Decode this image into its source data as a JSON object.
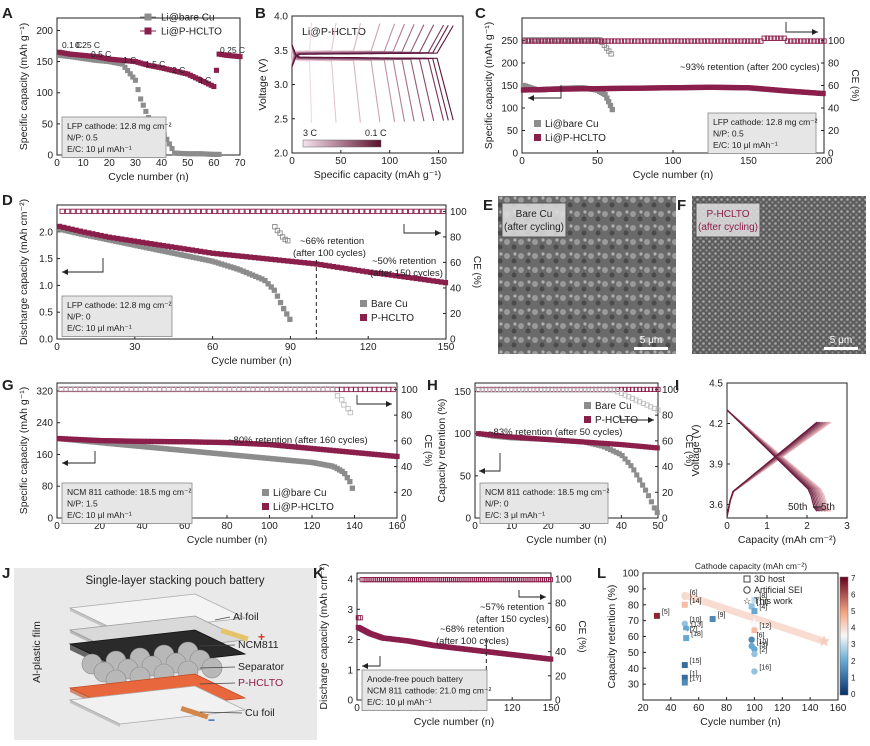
{
  "colors": {
    "bare": "#8c8c8c",
    "hcl": "#8b1f4b",
    "hcl_light": "#c9a0b3",
    "gray_light": "#bdbdbd"
  },
  "chart_data": [
    {
      "panel": "A",
      "type": "scatter",
      "xlabel": "Cycle number (n)",
      "ylabel": "Specific capacity (mAh g⁻¹)",
      "xlim": [
        0,
        70
      ],
      "ylim": [
        0,
        220
      ],
      "xticks": [
        0,
        10,
        20,
        30,
        40,
        50,
        60,
        70
      ],
      "yticks": [
        0,
        50,
        100,
        150,
        200
      ],
      "legend": [
        "Li@bare Cu",
        "Li@P-HCLTO"
      ],
      "rate_labels": [
        "0.1 C",
        "0.25 C",
        "0.5 C",
        "1 C",
        "1.5 C",
        "2 C",
        "3 C",
        "0.25 C"
      ],
      "info": [
        "LFP cathode: 12.8 mg cm⁻²",
        "N/P: 0.5",
        "E/C: 10 μl mAh⁻¹"
      ],
      "series": [
        {
          "name": "Li@bare Cu",
          "x": [
            1,
            5,
            10,
            15,
            20,
            25,
            30,
            32,
            35,
            40,
            45,
            50,
            55,
            60,
            62
          ],
          "y": [
            160,
            158,
            155,
            152,
            150,
            146,
            120,
            90,
            60,
            40,
            3,
            2,
            2,
            1,
            1
          ]
        },
        {
          "name": "Li@P-HCLTO",
          "x": [
            1,
            5,
            10,
            15,
            20,
            25,
            30,
            35,
            40,
            45,
            50,
            55,
            60,
            62,
            65,
            70
          ],
          "y": [
            165,
            162,
            160,
            158,
            154,
            152,
            150,
            144,
            140,
            135,
            130,
            120,
            110,
            162,
            160,
            158
          ]
        }
      ]
    },
    {
      "panel": "B",
      "type": "line",
      "title": "Li@P-HCLTO",
      "xlabel": "Specific capacity (mAh g⁻¹)",
      "ylabel": "Voltage (V)",
      "xlim": [
        0,
        175
      ],
      "ylim": [
        2.0,
        4.0
      ],
      "xticks": [
        0,
        50,
        100,
        150
      ],
      "yticks": [
        2.0,
        2.5,
        3.0,
        3.5,
        4.0
      ],
      "colorbar_labels": [
        "3 C",
        "0.1 C"
      ],
      "colorbar_ticks": [
        0,
        25,
        50,
        75,
        100
      ],
      "capacities": [
        20,
        45,
        70,
        90,
        105,
        115,
        125,
        135,
        145,
        155,
        160,
        165
      ]
    },
    {
      "panel": "C",
      "type": "scatter",
      "xlabel": "Cycle number (n)",
      "ylabel": "Specific capacity (mAh g⁻¹)",
      "y2label": "CE (%)",
      "xlim": [
        0,
        200
      ],
      "ylim": [
        0,
        300
      ],
      "y2lim": [
        0,
        120
      ],
      "xticks": [
        0,
        50,
        100,
        150,
        200
      ],
      "yticks": [
        0,
        50,
        100,
        150,
        200,
        250
      ],
      "y2ticks": [
        0,
        20,
        40,
        60,
        80,
        100
      ],
      "annotation": "~93% retention (after 200 cycles)",
      "legend": [
        "Li@bare Cu",
        "Li@P-HCLTO"
      ],
      "info": [
        "LFP cathode: 12.8 mg cm⁻²",
        "N/P: 0.5",
        "E/C: 10 μl mAh⁻¹"
      ],
      "series": [
        {
          "name": "Li@bare Cu",
          "x": [
            1,
            10,
            20,
            30,
            40,
            50,
            55,
            58,
            60
          ],
          "y": [
            150,
            140,
            142,
            144,
            145,
            140,
            130,
            110,
            95
          ]
        },
        {
          "name": "Li@P-HCLTO",
          "x": [
            1,
            25,
            50,
            75,
            100,
            125,
            150,
            175,
            200
          ],
          "y": [
            140,
            142,
            143,
            144,
            145,
            146,
            145,
            138,
            132
          ]
        }
      ]
    },
    {
      "panel": "D",
      "type": "scatter",
      "xlabel": "Cycle number (n)",
      "ylabel": "Discharge capacity (mAh cm⁻²)",
      "y2label": "CE (%)",
      "xlim": [
        0,
        150
      ],
      "ylim": [
        0.0,
        2.5
      ],
      "y2lim": [
        0,
        105
      ],
      "xticks": [
        0,
        30,
        60,
        90,
        120,
        150
      ],
      "yticks": [
        0.0,
        0.5,
        1.0,
        1.5,
        2.0
      ],
      "y2ticks": [
        0,
        20,
        40,
        60,
        80,
        100
      ],
      "annotations": [
        "~66% retention (after 100 cycles)",
        "~50% retention (after 150 cycles)"
      ],
      "legend": [
        "Bare Cu",
        "P-HCLTO"
      ],
      "info": [
        "LFP cathode: 12.8 mg cm⁻²",
        "N/P: 0",
        "E/C: 10 μl mAh⁻¹"
      ],
      "series": [
        {
          "name": "Bare Cu",
          "x": [
            1,
            10,
            20,
            30,
            40,
            50,
            60,
            70,
            80,
            84,
            87,
            90
          ],
          "y": [
            2.05,
            1.95,
            1.85,
            1.75,
            1.65,
            1.55,
            1.45,
            1.3,
            1.1,
            0.9,
            0.6,
            0.35
          ]
        },
        {
          "name": "P-HCLTO",
          "x": [
            1,
            10,
            20,
            40,
            60,
            80,
            100,
            120,
            140,
            150
          ],
          "y": [
            2.1,
            2.0,
            1.9,
            1.75,
            1.6,
            1.5,
            1.4,
            1.25,
            1.12,
            1.05
          ]
        }
      ]
    },
    {
      "panel": "E",
      "type": "image",
      "caption": [
        "Bare Cu",
        "(after cycling)"
      ],
      "scale": "5 μm"
    },
    {
      "panel": "F",
      "type": "image",
      "caption": [
        "P-HCLTO",
        "(after cycling)"
      ],
      "scale": "5 μm"
    },
    {
      "panel": "G",
      "type": "scatter",
      "xlabel": "Cycle number (n)",
      "ylabel": "Specific capacity (mAh g⁻¹)",
      "y2label": "CE (%)",
      "xlim": [
        0,
        160
      ],
      "ylim": [
        0,
        340
      ],
      "y2lim": [
        0,
        105
      ],
      "xticks": [
        0,
        20,
        40,
        60,
        80,
        100,
        120,
        140,
        160
      ],
      "yticks": [
        0,
        80,
        160,
        240,
        320
      ],
      "y2ticks": [
        0,
        20,
        40,
        60,
        80,
        100
      ],
      "annotation": "~80% retention (after 160 cycles)",
      "legend": [
        "Li@bare Cu",
        "Li@P-HCLTO"
      ],
      "info": [
        "NCM 811 cathode: 18.5 mg cm⁻²",
        "N/P: 1.5",
        "E/C: 10 μl mAh⁻¹"
      ],
      "series": [
        {
          "name": "Li@bare Cu",
          "x": [
            1,
            20,
            40,
            60,
            80,
            100,
            120,
            130,
            135,
            138,
            140
          ],
          "y": [
            200,
            190,
            180,
            170,
            160,
            150,
            140,
            130,
            115,
            90,
            60
          ]
        },
        {
          "name": "Li@P-HCLTO",
          "x": [
            1,
            20,
            40,
            60,
            80,
            100,
            120,
            140,
            160
          ],
          "y": [
            200,
            195,
            193,
            192,
            190,
            185,
            175,
            165,
            155
          ]
        }
      ]
    },
    {
      "panel": "H",
      "type": "scatter",
      "xlabel": "Cycle number (n)",
      "ylabel": "Capacity retention (%)",
      "y2label": "CE (%)",
      "xlim": [
        0,
        50
      ],
      "ylim": [
        0,
        160
      ],
      "y2lim": [
        0,
        105
      ],
      "xticks": [
        0,
        10,
        20,
        30,
        40,
        50
      ],
      "yticks": [
        0,
        50,
        100,
        150
      ],
      "y2ticks": [
        0,
        20,
        40,
        60,
        80,
        100
      ],
      "annotation": "~83% retention (after 50 cycles)",
      "legend": [
        "Bare Cu",
        "P-HCLTO"
      ],
      "info": [
        "NCM 811 cathode: 18.5 mg cm⁻²",
        "N/P: 0",
        "E/C: 3 μl mAh⁻¹"
      ],
      "series": [
        {
          "name": "Bare Cu",
          "x": [
            1,
            5,
            10,
            20,
            30,
            35,
            40,
            43,
            45,
            47,
            49,
            50
          ],
          "y": [
            100,
            97,
            95,
            93,
            90,
            85,
            75,
            60,
            45,
            30,
            12,
            5
          ]
        },
        {
          "name": "P-HCLTO",
          "x": [
            1,
            10,
            20,
            30,
            40,
            50
          ],
          "y": [
            100,
            96,
            93,
            90,
            87,
            83
          ]
        }
      ]
    },
    {
      "panel": "I",
      "type": "line",
      "xlabel": "Capacity (mAh cm⁻²)",
      "ylabel": "Voltage (V)",
      "xlim": [
        0,
        3
      ],
      "ylim": [
        3.5,
        4.5
      ],
      "xticks": [
        0,
        1,
        2,
        3
      ],
      "yticks": [
        3.6,
        3.9,
        4.2,
        4.5
      ],
      "labels": [
        "50th",
        "5th"
      ]
    },
    {
      "panel": "J",
      "type": "diagram",
      "title": "Single-layer stacking pouch battery",
      "labels": [
        "Al foil",
        "NCM811",
        "Separator",
        "P-HCLTO",
        "Cu foil",
        "Al-plastic film"
      ]
    },
    {
      "panel": "K",
      "type": "scatter",
      "xlabel": "Cycle number (n)",
      "ylabel": "Discharge capacity (mAh cm⁻²)",
      "y2label": "CE (%)",
      "xlim": [
        0,
        150
      ],
      "ylim": [
        0,
        4.2
      ],
      "y2lim": [
        0,
        105
      ],
      "xticks": [
        0,
        30,
        60,
        90,
        120,
        150
      ],
      "yticks": [
        0,
        1,
        2,
        3,
        4
      ],
      "y2ticks": [
        0,
        20,
        40,
        60,
        80,
        100
      ],
      "annotations": [
        "~57% retention (after 150 cycles)",
        "~68% retention (after 100 cycles)"
      ],
      "info": [
        "Anode-free pouch battery",
        "NCM 811 cathode: 21.0 mg cm⁻²",
        "E/C: 10 μl mAh⁻¹"
      ],
      "series": [
        {
          "name": "Discharge",
          "x": [
            1,
            10,
            20,
            40,
            60,
            80,
            100,
            120,
            140,
            150
          ],
          "y": [
            2.4,
            2.2,
            2.05,
            1.95,
            1.8,
            1.7,
            1.6,
            1.5,
            1.4,
            1.35
          ]
        }
      ]
    },
    {
      "panel": "L",
      "type": "scatter",
      "xlabel": "Cycle number (n)",
      "ylabel": "Capacity retention (%)",
      "xlim": [
        20,
        160
      ],
      "ylim": [
        20,
        100
      ],
      "xticks": [
        20,
        40,
        60,
        80,
        100,
        120,
        140,
        160
      ],
      "yticks": [
        30,
        40,
        50,
        60,
        70,
        80,
        90,
        100
      ],
      "colorbar_title": "Cathode capacity (mAh cm⁻²)",
      "colorbar_ticks": [
        0,
        1,
        2,
        3,
        4,
        5,
        6,
        7
      ],
      "legend": [
        "3D host",
        "Artificial SEI",
        "This work"
      ],
      "points": [
        {
          "ref": "[5]",
          "x": 30,
          "y": 73,
          "cap": 6.5,
          "kind": "host"
        },
        {
          "ref": "[6]",
          "x": 50,
          "y": 85,
          "cap": 4.0,
          "kind": "sei"
        },
        {
          "ref": "[14]",
          "x": 50,
          "y": 80,
          "cap": 4.5,
          "kind": "host"
        },
        {
          "ref": "[10]",
          "x": 50,
          "y": 68,
          "cap": 2.5,
          "kind": "sei"
        },
        {
          "ref": "[13]",
          "x": 51,
          "y": 65,
          "cap": 2.0,
          "kind": "sei"
        },
        {
          "ref": "[7]",
          "x": 50,
          "y": 62,
          "cap": 3.5,
          "kind": "sei"
        },
        {
          "ref": "[18]",
          "x": 51,
          "y": 59,
          "cap": 2.0,
          "kind": "host"
        },
        {
          "ref": "[9]",
          "x": 70,
          "y": 71,
          "cap": 1.5,
          "kind": "host"
        },
        {
          "ref": "[15]",
          "x": 50,
          "y": 42,
          "cap": 1.0,
          "kind": "host"
        },
        {
          "ref": "[1]",
          "x": 50,
          "y": 34,
          "cap": 1.0,
          "kind": "host"
        },
        {
          "ref": "[17]",
          "x": 50,
          "y": 31,
          "cap": 1.5,
          "kind": "host"
        },
        {
          "ref": "[8]",
          "x": 100,
          "y": 83,
          "cap": 3.0,
          "kind": "host"
        },
        {
          "ref": "[11]",
          "x": 98,
          "y": 79,
          "cap": 2.5,
          "kind": "host"
        },
        {
          "ref": "[4]",
          "x": 100,
          "y": 76,
          "cap": 2.0,
          "kind": "host"
        },
        {
          "ref": "[12]",
          "x": 100,
          "y": 64,
          "cap": 4.5,
          "kind": "host"
        },
        {
          "ref": "[6]",
          "x": 98,
          "y": 58,
          "cap": 1.5,
          "kind": "sei"
        },
        {
          "ref": "[10]",
          "x": 98,
          "y": 54,
          "cap": 2.0,
          "kind": "sei"
        },
        {
          "ref": "[3]",
          "x": 100,
          "y": 52,
          "cap": 2.0,
          "kind": "sei"
        },
        {
          "ref": "[2]",
          "x": 100,
          "y": 49,
          "cap": 2.5,
          "kind": "sei"
        },
        {
          "ref": "[16]",
          "x": 100,
          "y": 38,
          "cap": 2.5,
          "kind": "sei"
        },
        {
          "ref": "",
          "x": 100,
          "y": 68,
          "cap": 3.5,
          "kind": "this"
        },
        {
          "ref": "",
          "x": 150,
          "y": 57,
          "cap": 4.2,
          "kind": "this"
        }
      ]
    }
  ]
}
